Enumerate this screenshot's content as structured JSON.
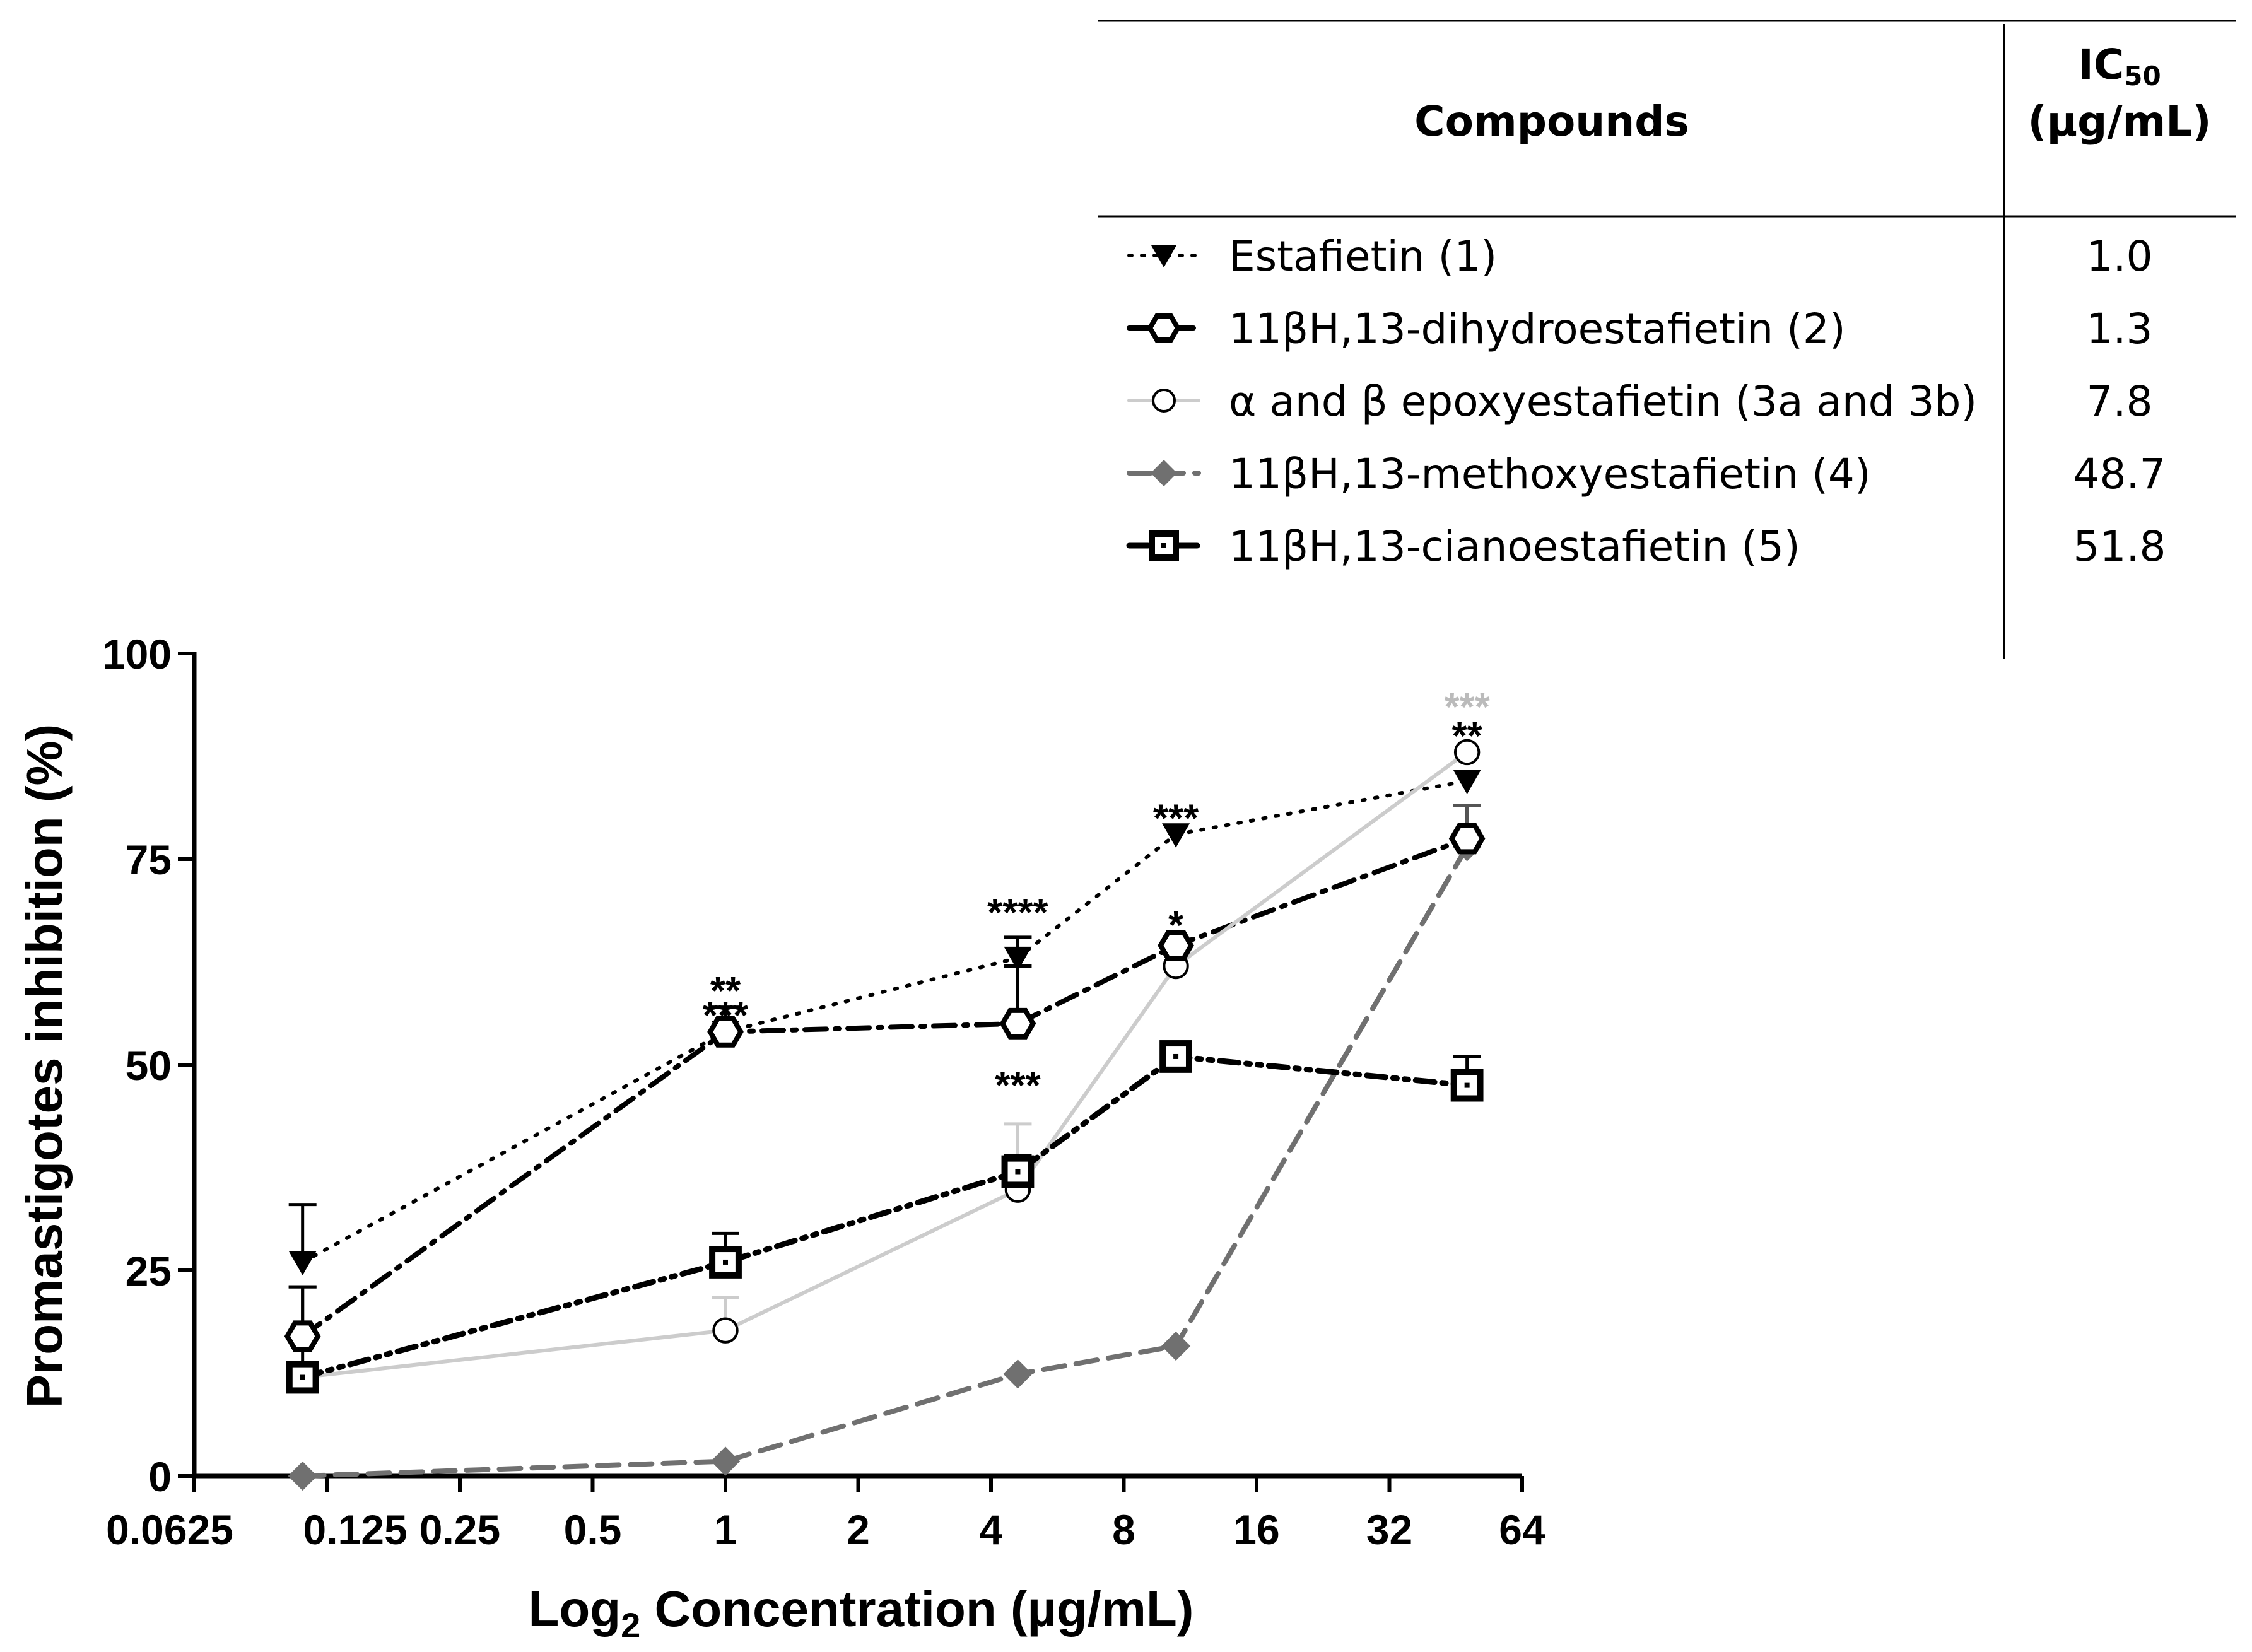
{
  "chart_data": {
    "type": "line",
    "xlabel_main": "Log",
    "xlabel_sub": "2",
    "xlabel_rest": " Concentration (µg/mL)",
    "ylabel": "Promastigotes inhibition (%)",
    "xscale": "log2",
    "xlim": [
      0.0625,
      64
    ],
    "ylim": [
      0,
      100
    ],
    "x_ticks": [
      {
        "value": 0.0625,
        "label": "0.0625"
      },
      {
        "value": 0.125,
        "label": "0.125"
      },
      {
        "value": 0.25,
        "label": "0.25"
      },
      {
        "value": 0.5,
        "label": "0.5"
      },
      {
        "value": 1,
        "label": "1"
      },
      {
        "value": 2,
        "label": "2"
      },
      {
        "value": 4,
        "label": "4"
      },
      {
        "value": 8,
        "label": "8"
      },
      {
        "value": 16,
        "label": "16"
      },
      {
        "value": 32,
        "label": "32"
      },
      {
        "value": 64,
        "label": "64"
      }
    ],
    "y_ticks": [
      {
        "value": 0,
        "label": "0"
      },
      {
        "value": 25,
        "label": "25"
      },
      {
        "value": 50,
        "label": "50"
      },
      {
        "value": 75,
        "label": "75"
      },
      {
        "value": 100,
        "label": "100"
      }
    ],
    "series": [
      {
        "name": "Estafietin (1)",
        "ic50": "1.0",
        "color": "#000000",
        "dash": "dotted",
        "marker": "triangle-down",
        "x": [
          0.11,
          1,
          4.6,
          10.5,
          48
        ],
        "y": [
          26,
          54,
          63,
          78,
          84.5
        ],
        "err": [
          7,
          3,
          2.5,
          0,
          0
        ]
      },
      {
        "name": "11βH,13-dihydroestafietin (2)",
        "ic50": "1.3",
        "color": "#000000",
        "dash": "dashdot",
        "marker": "hexagon-open",
        "x": [
          0.11,
          1,
          4.6,
          10.5,
          48
        ],
        "y": [
          17,
          54,
          55,
          64.5,
          77.5
        ],
        "err": [
          6,
          3,
          7,
          0,
          4
        ]
      },
      {
        "name": "α and β epoxyestafietin (3a and 3b)",
        "ic50": "7.8",
        "color": "#cccccc",
        "dash": "solid",
        "marker": "circle-open",
        "x": [
          0.11,
          1,
          4.6,
          10.5,
          48
        ],
        "y": [
          12,
          17.7,
          34.8,
          62,
          88
        ],
        "err": [
          0,
          4,
          8,
          0,
          0
        ]
      },
      {
        "name": "11βH,13-methoxyestafietin (4)",
        "ic50": "48.7",
        "color": "#707070",
        "dash": "dashed",
        "marker": "diamond",
        "x": [
          0.11,
          1,
          4.6,
          10.5,
          48
        ],
        "y": [
          0,
          1.8,
          12.4,
          15.8,
          76.5
        ],
        "err": [
          0,
          0,
          0,
          0,
          5
        ]
      },
      {
        "name": "11βH,13-cianoestafietin (5)",
        "ic50": "51.8",
        "color": "#000000",
        "dash": "dashdotdot",
        "marker": "square-open",
        "x": [
          0.11,
          1,
          4.6,
          10.5,
          48
        ],
        "y": [
          12,
          26,
          37,
          51,
          47.5
        ],
        "err": [
          11,
          3.5,
          2,
          0,
          3.5
        ]
      }
    ],
    "annotations": [
      {
        "text": "**",
        "x": 1,
        "y": 59.5,
        "color": "#000000"
      },
      {
        "text": "***",
        "x": 1,
        "y": 56.5,
        "color": "#000000"
      },
      {
        "text": "****",
        "x": 4.6,
        "y": 69,
        "color": "#000000"
      },
      {
        "text": "***",
        "x": 4.6,
        "y": 48,
        "color": "#000000"
      },
      {
        "text": "***",
        "x": 10.5,
        "y": 80.5,
        "color": "#000000"
      },
      {
        "text": "*",
        "x": 10.5,
        "y": 67.5,
        "color": "#000000"
      },
      {
        "text": "***",
        "x": 48,
        "y": 94,
        "color": "#bbbbbb"
      },
      {
        "text": "**",
        "x": 48,
        "y": 90.5,
        "color": "#000000"
      }
    ]
  },
  "legend_table": {
    "header_compounds": "Compounds",
    "header_ic50_main": "IC",
    "header_ic50_sub": "50",
    "header_ic50_unit": "(µg/mL)"
  }
}
